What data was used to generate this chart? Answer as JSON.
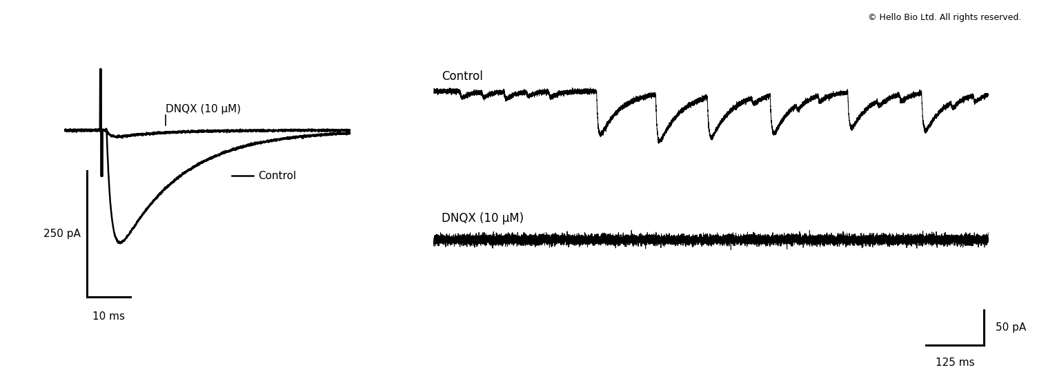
{
  "bg_color": "#ffffff",
  "copyright_text": "© Hello Bio Ltd. All rights reserved.",
  "left_panel": {
    "dnqx_label": "DNQX (10 μM)",
    "control_label": "Control",
    "scalebar_y_label": "250 pA",
    "scalebar_x_label": "10 ms"
  },
  "right_panel": {
    "control_label": "Control",
    "dnqx_label": "DNQX (10 μM)",
    "scalebar_y_label": "50 pA",
    "scalebar_x_label": "125 ms"
  },
  "seed": 1234
}
